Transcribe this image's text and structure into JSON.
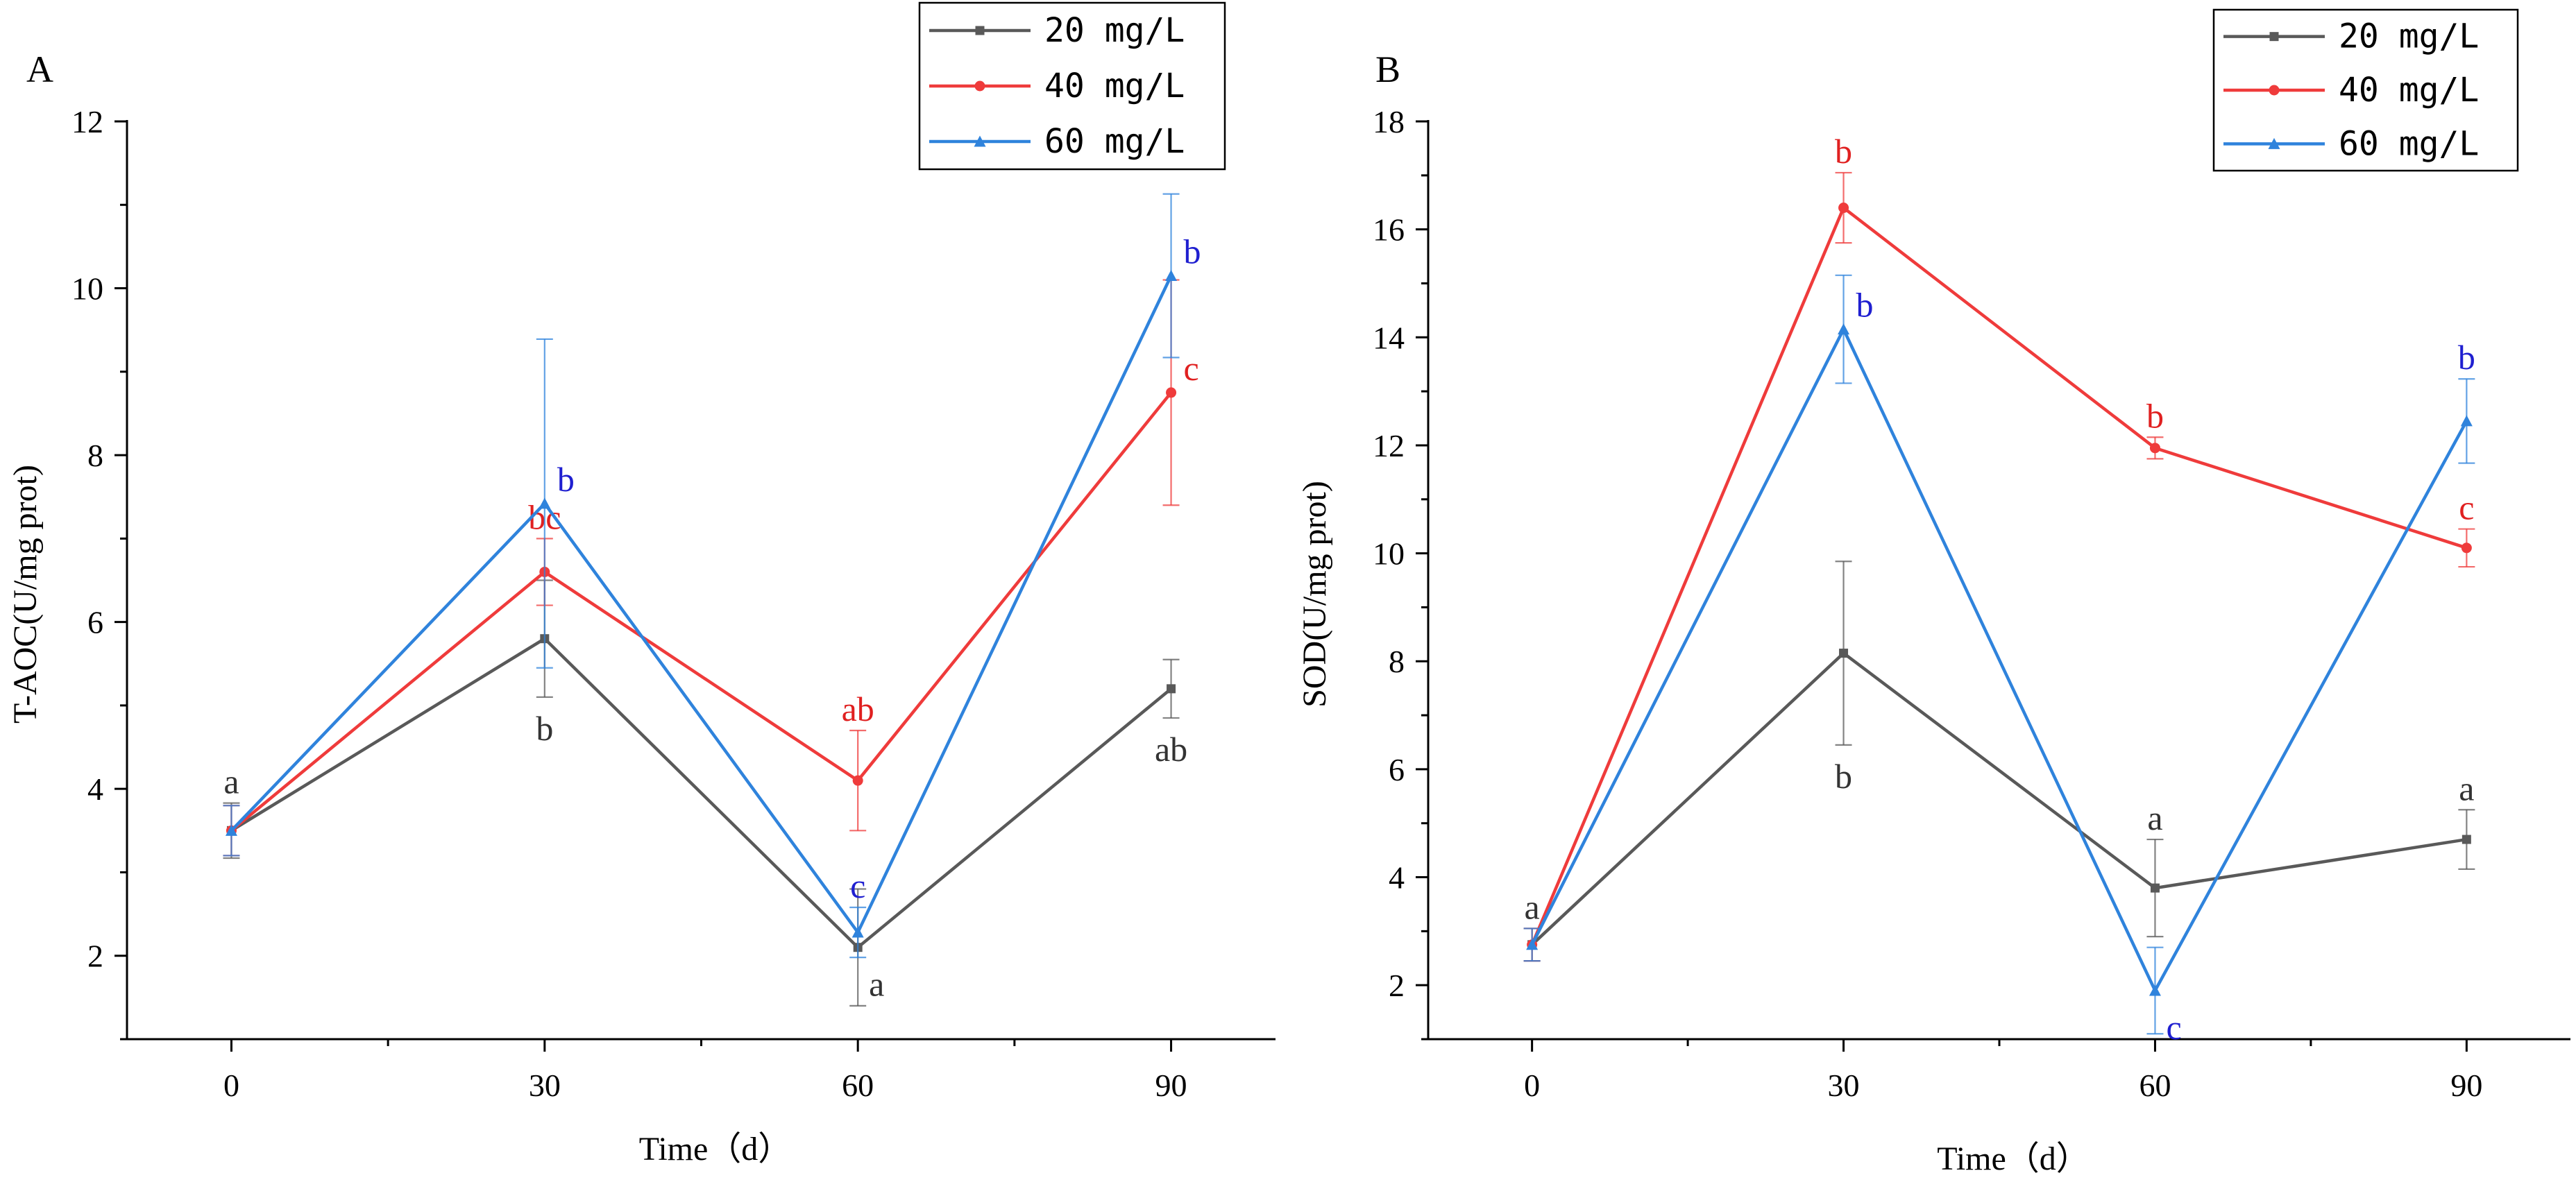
{
  "colors": {
    "series_20": "#595959",
    "series_40": "#ef3b3b",
    "series_60": "#2f83dc",
    "label_20": "#333333",
    "label_40": "#e02020",
    "label_60": "#1f1fd0",
    "axis": "#000000"
  },
  "chart_data": [
    {
      "panel_label": "A",
      "type": "line",
      "title": "",
      "xlabel": "Time（d）",
      "ylabel": "T-AOC(U/mg prot)",
      "x": [
        0,
        30,
        60,
        90
      ],
      "x_ticks": [
        "0",
        "30",
        "60",
        "90"
      ],
      "xlim": [
        -10,
        100
      ],
      "ylim": [
        1,
        12
      ],
      "y_ticks": [
        "2",
        "4",
        "6",
        "8",
        "10",
        "12"
      ],
      "legend_position": "top-right",
      "series": [
        {
          "name": "20 mg/L",
          "marker": "square",
          "color_key": "series_20",
          "values": [
            3.5,
            5.8,
            2.1,
            5.2
          ],
          "errors": [
            0.33,
            0.7,
            0.7,
            0.35
          ],
          "letters": [
            "a",
            "b",
            "a",
            "ab"
          ],
          "letter_pos": [
            "above",
            "below",
            "right-below",
            "below"
          ]
        },
        {
          "name": "40 mg/L",
          "marker": "circle",
          "color_key": "series_40",
          "values": [
            3.5,
            6.6,
            4.1,
            8.75
          ],
          "errors": [
            0.3,
            0.4,
            0.6,
            1.35
          ],
          "letters": [
            "",
            "bc",
            "ab",
            "c"
          ],
          "letter_pos": [
            "none",
            "above",
            "above",
            "right"
          ]
        },
        {
          "name": "60 mg/L",
          "marker": "triangle",
          "color_key": "series_60",
          "values": [
            3.5,
            7.42,
            2.28,
            10.15
          ],
          "errors": [
            0.3,
            1.97,
            0.3,
            0.98
          ],
          "letters": [
            "",
            "b",
            "c",
            "b"
          ],
          "letter_pos": [
            "none",
            "right",
            "above",
            "right"
          ]
        }
      ]
    },
    {
      "panel_label": "B",
      "type": "line",
      "title": "",
      "xlabel": "Time（d）",
      "ylabel": "SOD(U/mg prot)",
      "x": [
        0,
        30,
        60,
        90
      ],
      "x_ticks": [
        "0",
        "30",
        "60",
        "90"
      ],
      "xlim": [
        -10,
        100
      ],
      "ylim": [
        1,
        18
      ],
      "y_ticks": [
        "2",
        "4",
        "6",
        "8",
        "10",
        "12",
        "14",
        "16",
        "18"
      ],
      "legend_position": "top-right",
      "series": [
        {
          "name": "20 mg/L",
          "marker": "square",
          "color_key": "series_20",
          "values": [
            2.75,
            8.15,
            3.8,
            4.7
          ],
          "errors": [
            0.3,
            1.7,
            0.9,
            0.55
          ],
          "letters": [
            "a",
            "b",
            "a",
            "a"
          ],
          "letter_pos": [
            "above",
            "below",
            "above",
            "above"
          ]
        },
        {
          "name": "40 mg/L",
          "marker": "circle",
          "color_key": "series_40",
          "values": [
            2.75,
            16.4,
            11.95,
            10.1
          ],
          "errors": [
            0.3,
            0.65,
            0.2,
            0.35
          ],
          "letters": [
            "",
            "b",
            "b",
            "c"
          ],
          "letter_pos": [
            "none",
            "above",
            "above",
            "above"
          ]
        },
        {
          "name": "60 mg/L",
          "marker": "triangle",
          "color_key": "series_60",
          "values": [
            2.75,
            14.15,
            1.9,
            12.45
          ],
          "errors": [
            0.3,
            1.0,
            0.8,
            0.78
          ],
          "letters": [
            "",
            "b",
            "c",
            "b"
          ],
          "letter_pos": [
            "none",
            "right",
            "right-below",
            "above"
          ]
        }
      ]
    }
  ]
}
